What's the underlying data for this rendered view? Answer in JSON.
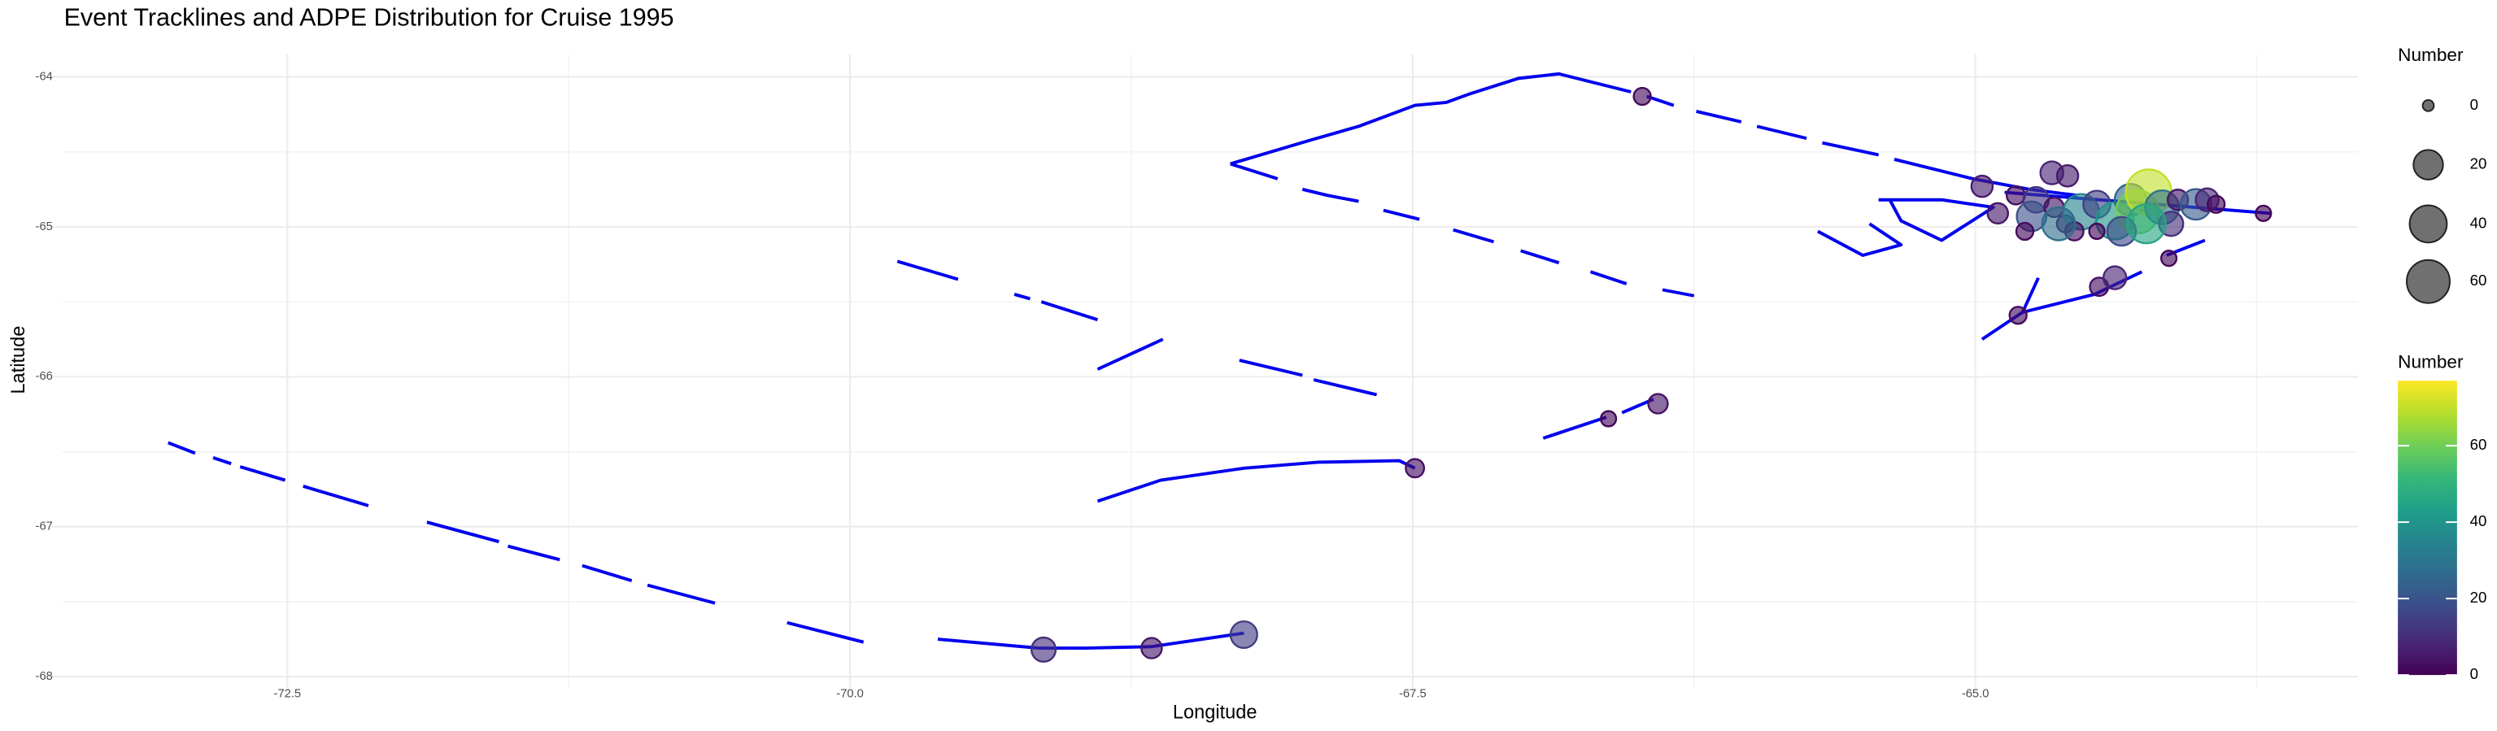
{
  "chart_data": {
    "type": "scatter",
    "title": "Event Tracklines and ADPE Distribution for Cruise 1995",
    "x_label": "Longitude",
    "y_label": "Latitude",
    "xlim": [
      -73.5,
      -63.3
    ],
    "ylim": [
      -68,
      -63.85
    ],
    "xticks": [
      -72.5,
      {
        "value": -70,
        "label": "-70.0"
      },
      -67.5,
      {
        "value": -65,
        "label": "-65.0"
      }
    ],
    "yticks": [
      -64,
      -65,
      -66,
      -67,
      -68
    ],
    "xminor": [
      -71.25,
      -68.75,
      -66.25,
      -63.75
    ],
    "yminor": [
      -64.5,
      -65.5,
      -66.5,
      -67.5
    ],
    "grid": true,
    "line_color": "#0000ee",
    "tracklines": [
      {
        "x": [
          -73.03,
          -72.91
        ],
        "y": [
          -66.44,
          -66.51
        ]
      },
      {
        "x": [
          -72.83,
          -72.75
        ],
        "y": [
          -66.54,
          -66.58
        ]
      },
      {
        "x": [
          -72.71,
          -72.51
        ],
        "y": [
          -66.6,
          -66.69
        ]
      },
      {
        "x": [
          -72.43,
          -72.14
        ],
        "y": [
          -66.73,
          -66.86
        ]
      },
      {
        "x": [
          -71.88,
          -71.56
        ],
        "y": [
          -66.97,
          -67.1
        ]
      },
      {
        "x": [
          -71.52,
          -71.29
        ],
        "y": [
          -67.13,
          -67.22
        ]
      },
      {
        "x": [
          -71.19,
          -70.97
        ],
        "y": [
          -67.26,
          -67.36
        ]
      },
      {
        "x": [
          -70.9,
          -70.6
        ],
        "y": [
          -67.39,
          -67.51
        ]
      },
      {
        "x": [
          -70.28,
          -69.94
        ],
        "y": [
          -67.64,
          -67.77
        ]
      },
      {
        "x": [
          -69.61,
          -69.16,
          -68.95,
          -68.66,
          -68.25
        ],
        "y": [
          -67.75,
          -67.81,
          -67.81,
          -67.8,
          -67.71
        ]
      },
      {
        "x": [
          -68.9,
          -68.62,
          -68.25,
          -67.92,
          -67.56,
          -67.49
        ],
        "y": [
          -66.83,
          -66.69,
          -66.61,
          -66.57,
          -66.56,
          -66.61
        ]
      },
      {
        "x": [
          -68.9,
          -68.61
        ],
        "y": [
          -65.95,
          -65.75
        ]
      },
      {
        "x": [
          -68.27,
          -67.99
        ],
        "y": [
          -65.89,
          -65.99
        ]
      },
      {
        "x": [
          -67.94,
          -67.66
        ],
        "y": [
          -66.02,
          -66.12
        ]
      },
      {
        "x": [
          -69.79,
          -69.52
        ],
        "y": [
          -65.23,
          -65.35
        ]
      },
      {
        "x": [
          -69.27,
          -69.2
        ],
        "y": [
          -65.45,
          -65.48
        ]
      },
      {
        "x": [
          -69.15,
          -68.9
        ],
        "y": [
          -65.5,
          -65.62
        ]
      },
      {
        "x": [
          -68.31,
          -68.1
        ],
        "y": [
          -64.58,
          -64.68
        ]
      },
      {
        "x": [
          -67.99,
          -67.88,
          -67.74
        ],
        "y": [
          -64.75,
          -64.79,
          -64.83
        ]
      },
      {
        "x": [
          -67.63,
          -67.47
        ],
        "y": [
          -64.89,
          -64.95
        ]
      },
      {
        "x": [
          -67.32,
          -67.14
        ],
        "y": [
          -65.02,
          -65.1
        ]
      },
      {
        "x": [
          -67.02,
          -66.85
        ],
        "y": [
          -65.16,
          -65.24
        ]
      },
      {
        "x": [
          -66.71,
          -66.55
        ],
        "y": [
          -65.3,
          -65.38
        ]
      },
      {
        "x": [
          -66.39,
          -66.25
        ],
        "y": [
          -65.42,
          -65.46
        ]
      },
      {
        "x": [
          -68.31,
          -67.95,
          -67.74,
          -67.49,
          -67.35,
          -67.24,
          -67.03,
          -66.85,
          -66.53
        ],
        "y": [
          -64.58,
          -64.42,
          -64.33,
          -64.19,
          -64.17,
          -64.11,
          -64.01,
          -63.98,
          -64.1
        ]
      },
      {
        "x": [
          -66.46,
          -66.34
        ],
        "y": [
          -64.13,
          -64.19
        ]
      },
      {
        "x": [
          -66.24,
          -66.04
        ],
        "y": [
          -64.23,
          -64.3
        ]
      },
      {
        "x": [
          -65.97,
          -65.75
        ],
        "y": [
          -64.33,
          -64.41
        ]
      },
      {
        "x": [
          -65.68,
          -65.43
        ],
        "y": [
          -64.44,
          -64.52
        ]
      },
      {
        "x": [
          -65.36,
          -65.01,
          -64.76,
          -64.55
        ],
        "y": [
          -64.55,
          -64.68,
          -64.75,
          -64.79
        ]
      },
      {
        "x": [
          -65.43,
          -65.15,
          -64.92,
          -65.15,
          -65.33,
          -65.38
        ],
        "y": [
          -64.82,
          -64.82,
          -64.87,
          -65.09,
          -64.96,
          -64.82
        ]
      },
      {
        "x": [
          -65.7,
          -65.5,
          -65.33,
          -65.47
        ],
        "y": [
          -65.03,
          -65.19,
          -65.12,
          -64.98
        ]
      },
      {
        "x": [
          -64.87,
          -63.69
        ],
        "y": [
          -64.77,
          -64.91
        ]
      },
      {
        "x": [
          -64.97,
          -64.79,
          -64.47,
          -64.26
        ],
        "y": [
          -65.75,
          -65.57,
          -65.45,
          -65.3
        ]
      },
      {
        "x": [
          -64.79,
          -64.72
        ],
        "y": [
          -65.57,
          -65.34
        ]
      },
      {
        "x": [
          -64.15,
          -63.98
        ],
        "y": [
          -65.19,
          -65.09
        ]
      },
      {
        "x": [
          -66.92,
          -66.64
        ],
        "y": [
          -66.41,
          -66.27
        ]
      },
      {
        "x": [
          -66.57,
          -66.43
        ],
        "y": [
          -66.24,
          -66.15
        ]
      }
    ],
    "points": {
      "x": [
        -69.14,
        -68.66,
        -68.25,
        -67.49,
        -66.63,
        -66.41,
        -66.48,
        -64.97,
        -64.81,
        -64.14,
        -64.45,
        -64.38,
        -64.9,
        -63.72,
        -64.82,
        -64.73,
        -64.66,
        -64.59,
        -64.75,
        -64.65,
        -64.6,
        -64.53,
        -64.46,
        -64.38,
        -64.31,
        -64.28,
        -64.23,
        -64.17,
        -64.13,
        -64.1,
        -64.02,
        -63.97,
        -63.93,
        -64.56,
        -64.46,
        -64.35,
        -64.78,
        -64.63,
        -64.24
      ],
      "y": [
        -67.82,
        -67.81,
        -67.72,
        -66.61,
        -66.28,
        -66.18,
        -64.13,
        -64.73,
        -65.59,
        -65.21,
        -65.4,
        -65.34,
        -64.91,
        -64.91,
        -64.79,
        -64.82,
        -64.64,
        -64.66,
        -64.93,
        -64.87,
        -64.98,
        -64.9,
        -64.85,
        -64.96,
        -64.82,
        -64.9,
        -64.77,
        -64.87,
        -64.98,
        -64.82,
        -64.85,
        -64.82,
        -64.85,
        -65.03,
        -65.03,
        -65.03,
        -65.03,
        -64.98,
        -64.98
      ],
      "number": [
        10,
        5,
        14,
        3,
        1,
        4,
        2,
        6,
        2,
        1,
        3,
        8,
        5,
        1,
        3,
        12,
        8,
        6,
        20,
        4,
        2,
        35,
        15,
        40,
        25,
        60,
        70,
        30,
        10,
        5,
        22,
        8,
        2,
        3,
        1,
        18,
        2,
        28,
        45
      ]
    },
    "size_legend_title": "Number",
    "size_breaks": [
      0,
      20,
      40,
      60
    ],
    "color_legend_title": "Number",
    "color_lim": [
      0,
      77
    ],
    "color_ticks": [
      0,
      20,
      40,
      60
    ]
  }
}
